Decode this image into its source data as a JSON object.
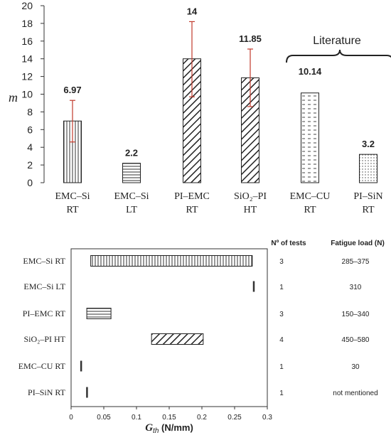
{
  "chart_data": [
    {
      "type": "bar",
      "ylabel": "m",
      "ylim": [
        0,
        20
      ],
      "yticks": [
        0,
        2,
        4,
        6,
        8,
        10,
        12,
        14,
        16,
        18,
        20
      ],
      "categories": [
        {
          "line1": "EMC–Si",
          "line2": "RT"
        },
        {
          "line1": "EMC–Si",
          "line2": "LT"
        },
        {
          "line1": "PI–EMC",
          "line2": "RT"
        },
        {
          "line1": "SiO₂–PI",
          "line2": "HT"
        },
        {
          "line1": "EMC–CU",
          "line2": "RT"
        },
        {
          "line1": "PI–SiN",
          "line2": "RT"
        }
      ],
      "values": [
        6.97,
        2.2,
        14,
        11.85,
        10.14,
        3.2
      ],
      "value_labels": [
        "6.97",
        "2.2",
        "14",
        "11.85",
        "10.14",
        "3.2"
      ],
      "error_low": [
        4.6,
        null,
        9.7,
        8.6,
        null,
        null
      ],
      "error_high": [
        9.3,
        null,
        18.2,
        15.1,
        null,
        null
      ],
      "patterns": [
        "vertical",
        "horizontal",
        "diagonal",
        "diagonal",
        "dash",
        "dots"
      ],
      "bracket_label": "Literature",
      "bracket_categories": [
        4,
        5
      ],
      "error_color": "#c0392b"
    },
    {
      "type": "bar",
      "orientation": "horizontal",
      "xlabel_main": "G",
      "xlabel_sub": "th",
      "xlabel_unit": " (N/mm)",
      "xlim": [
        0,
        0.3
      ],
      "xticks": [
        {
          "value": 0,
          "label": "0"
        },
        {
          "value": 0.05,
          "label": "0.05"
        },
        {
          "value": 0.1,
          "label": "0.1"
        },
        {
          "value": 0.15,
          "label": "0.15"
        },
        {
          "value": 0.2,
          "label": "0.2"
        },
        {
          "value": 0.25,
          "label": "0.25"
        },
        {
          "value": 0.3,
          "label": "0.3"
        }
      ],
      "rows": [
        {
          "label": "EMC–Si RT",
          "start": 0.03,
          "end": 0.277,
          "pattern": "vertical",
          "tests": "3",
          "load": "285–375"
        },
        {
          "label": "EMC–Si  LT",
          "start": 0.278,
          "end": 0.28,
          "pattern": "solid",
          "tests": "1",
          "load": "310"
        },
        {
          "label": "PI–EMC  RT",
          "start": 0.024,
          "end": 0.061,
          "pattern": "horizontal",
          "tests": "3",
          "load": "150–340"
        },
        {
          "label": "SiO₂–PI  HT",
          "start": 0.123,
          "end": 0.202,
          "pattern": "diagonal",
          "tests": "4",
          "load": "450–580"
        },
        {
          "label": "EMC–CU  RT",
          "start": 0.014,
          "end": 0.016,
          "pattern": "solid",
          "tests": "1",
          "load": "30"
        },
        {
          "label": "PI–SiN  RT",
          "start": 0.023,
          "end": 0.025,
          "pattern": "solid",
          "tests": "1",
          "load": "not mentioned"
        }
      ],
      "col_headers": {
        "tests": "Nº of tests",
        "load": "Fatigue load (N)"
      }
    }
  ]
}
